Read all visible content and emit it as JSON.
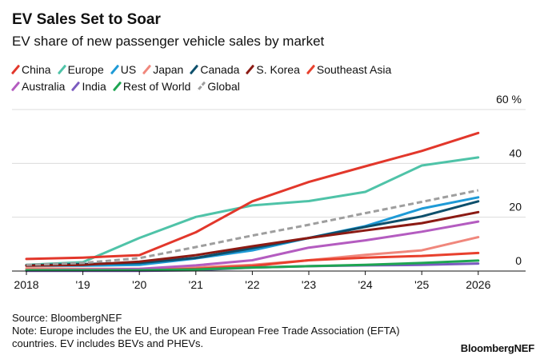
{
  "title": "EV Sales Set to Soar",
  "subtitle": "EV share of new passenger vehicle sales by market",
  "source": "Source: BloombergNEF",
  "note_line1": "Note: Europe includes the EU, the UK and European Free Trade Association (EFTA)",
  "note_line2": "countries. EV includes BEVs and PHEVs.",
  "brand": "BloombergNEF",
  "chart_data": {
    "type": "line",
    "title": "EV Sales Set to Soar",
    "subtitle": "EV share of new passenger vehicle sales by market",
    "x": [
      "2018",
      "'19",
      "'20",
      "'21",
      "'22",
      "'23",
      "'24",
      "'25",
      "2026"
    ],
    "ylim": [
      0,
      60
    ],
    "yticks": [
      0,
      20,
      40,
      60
    ],
    "ytick_labels": [
      "0",
      "20",
      "40",
      "60 %"
    ],
    "y_axis_side": "right",
    "grid": true,
    "legend_position": "top",
    "series": [
      {
        "name": "China",
        "color": "#e2372b",
        "dashed": false,
        "values": [
          4.5,
          5,
          5.9,
          14.4,
          25.9,
          33.1,
          38.9,
          44.6,
          51.3
        ]
      },
      {
        "name": "Europe",
        "color": "#4fc3a8",
        "dashed": false,
        "values": [
          2.3,
          3.3,
          12.3,
          20.1,
          24.4,
          26,
          29.4,
          39.2,
          42.2
        ]
      },
      {
        "name": "US",
        "color": "#1e9ad6",
        "dashed": false,
        "values": [
          2,
          2,
          2.3,
          4.7,
          7.7,
          12.3,
          16.7,
          23.2,
          27.4
        ]
      },
      {
        "name": "Japan",
        "color": "#f0877c",
        "dashed": false,
        "values": [
          1,
          0.8,
          0.8,
          1.3,
          2.3,
          4,
          6,
          7.7,
          12.6
        ]
      },
      {
        "name": "Canada",
        "color": "#0d4f6b",
        "dashed": false,
        "values": [
          2.1,
          2.6,
          3,
          4.9,
          8.5,
          12.3,
          16.4,
          20.3,
          25.9
        ]
      },
      {
        "name": "S. Korea",
        "color": "#8b1a13",
        "dashed": false,
        "values": [
          2,
          2.3,
          3.5,
          5.9,
          9.2,
          12.3,
          15.1,
          17.8,
          21.9
        ]
      },
      {
        "name": "Southeast Asia",
        "color": "#e8402d",
        "dashed": false,
        "values": [
          0.3,
          0.3,
          0.3,
          0.8,
          1.9,
          4,
          5,
          5.6,
          6.7
        ]
      },
      {
        "name": "Australia",
        "color": "#b45cc0",
        "dashed": false,
        "values": [
          0.3,
          0.5,
          0.8,
          2.1,
          4,
          8.7,
          11.4,
          14.6,
          18.4
        ]
      },
      {
        "name": "India",
        "color": "#7b5bbf",
        "dashed": false,
        "values": [
          0.1,
          0.1,
          0.1,
          0.3,
          1.3,
          1.8,
          2.1,
          2.3,
          2.8
        ]
      },
      {
        "name": "Rest of World",
        "color": "#1ea552",
        "dashed": false,
        "values": [
          0.3,
          0.3,
          0.3,
          0.6,
          1.3,
          1.8,
          2.3,
          3,
          3.9
        ]
      },
      {
        "name": "Global",
        "color": "#9e9e9e",
        "dashed": true,
        "values": [
          2.3,
          3,
          4.8,
          8.9,
          13.2,
          17.2,
          21.5,
          25.7,
          30
        ]
      }
    ]
  }
}
